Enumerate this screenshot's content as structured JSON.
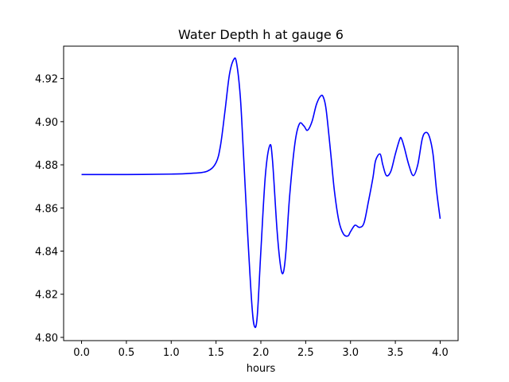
{
  "chart_data": {
    "type": "line",
    "title": "Water Depth h at gauge 6",
    "xlabel": "hours",
    "ylabel": "",
    "xlim": [
      -0.2,
      4.2
    ],
    "ylim": [
      4.7985,
      4.935
    ],
    "xticks": [
      0.0,
      0.5,
      1.0,
      1.5,
      2.0,
      2.5,
      3.0,
      3.5,
      4.0
    ],
    "xtick_labels": [
      "0.0",
      "0.5",
      "1.0",
      "1.5",
      "2.0",
      "2.5",
      "3.0",
      "3.5",
      "4.0"
    ],
    "yticks": [
      4.8,
      4.82,
      4.84,
      4.86,
      4.88,
      4.9,
      4.92
    ],
    "ytick_labels": [
      "4.80",
      "4.82",
      "4.84",
      "4.86",
      "4.88",
      "4.90",
      "4.92"
    ],
    "grid": false,
    "series": [
      {
        "color": "#0000ff",
        "x": [
          0.0,
          0.5,
          1.0,
          1.2,
          1.4,
          1.5,
          1.55,
          1.6,
          1.65,
          1.7,
          1.73,
          1.77,
          1.8,
          1.85,
          1.9,
          1.93,
          1.96,
          2.0,
          2.05,
          2.1,
          2.13,
          2.18,
          2.22,
          2.25,
          2.28,
          2.32,
          2.38,
          2.43,
          2.48,
          2.52,
          2.57,
          2.62,
          2.67,
          2.7,
          2.73,
          2.78,
          2.82,
          2.87,
          2.92,
          2.97,
          3.0,
          3.05,
          3.1,
          3.15,
          3.2,
          3.25,
          3.28,
          3.33,
          3.36,
          3.4,
          3.45,
          3.5,
          3.55,
          3.57,
          3.6,
          3.65,
          3.7,
          3.75,
          3.8,
          3.84,
          3.88,
          3.92,
          3.96,
          4.0
        ],
        "y": [
          4.8755,
          4.8755,
          4.8757,
          4.876,
          4.877,
          4.881,
          4.889,
          4.905,
          4.922,
          4.929,
          4.927,
          4.912,
          4.89,
          4.85,
          4.815,
          4.805,
          4.81,
          4.84,
          4.875,
          4.889,
          4.882,
          4.85,
          4.833,
          4.83,
          4.84,
          4.865,
          4.89,
          4.899,
          4.898,
          4.896,
          4.9,
          4.908,
          4.912,
          4.911,
          4.905,
          4.885,
          4.868,
          4.854,
          4.848,
          4.847,
          4.849,
          4.852,
          4.851,
          4.853,
          4.863,
          4.874,
          4.882,
          4.885,
          4.88,
          4.875,
          4.877,
          4.885,
          4.892,
          4.892,
          4.888,
          4.88,
          4.875,
          4.88,
          4.892,
          4.895,
          4.893,
          4.885,
          4.868,
          4.855
        ]
      }
    ]
  }
}
